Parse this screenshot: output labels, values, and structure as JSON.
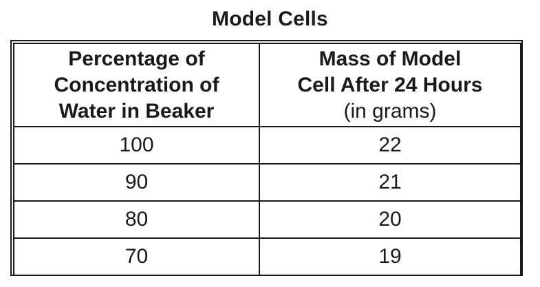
{
  "table": {
    "title": "Model Cells",
    "headers": {
      "col1": [
        "Percentage of",
        "Concentration of",
        "Water in Beaker"
      ],
      "col2": [
        "Mass of Model",
        "Cell After 24 Hours"
      ],
      "col2_unit": "(in grams)"
    },
    "rows": [
      {
        "percentage": "100",
        "mass": "22"
      },
      {
        "percentage": "90",
        "mass": "21"
      },
      {
        "percentage": "80",
        "mass": "20"
      },
      {
        "percentage": "70",
        "mass": "19"
      }
    ]
  }
}
